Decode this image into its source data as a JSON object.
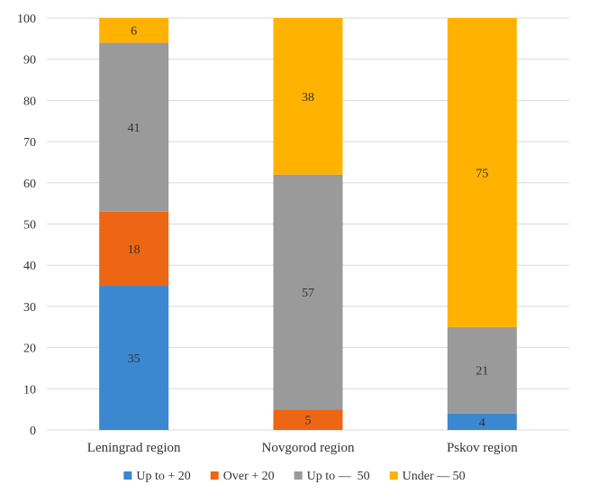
{
  "chart_data": {
    "type": "bar",
    "stacked": true,
    "categories": [
      "Leningrad region",
      "Novgorod region",
      "Pskov region"
    ],
    "series": [
      {
        "name": "Up to + 20",
        "color": "#3b87d0",
        "values": [
          35,
          0,
          4
        ]
      },
      {
        "name": "Over + 20",
        "color": "#ec6614",
        "values": [
          18,
          5,
          0
        ]
      },
      {
        "name": "Up to —  50",
        "color": "#9a9a9a",
        "values": [
          41,
          57,
          21
        ]
      },
      {
        "name": "Under — 50",
        "color": "#ffb300",
        "values": [
          6,
          38,
          75
        ]
      }
    ],
    "y_ticks": [
      "0",
      "10",
      "20",
      "30",
      "40",
      "50",
      "60",
      "70",
      "80",
      "90",
      "100"
    ],
    "ylim": [
      0,
      100
    ],
    "title": "",
    "xlabel": "",
    "ylabel": "",
    "grid": true,
    "legend_position": "bottom"
  }
}
